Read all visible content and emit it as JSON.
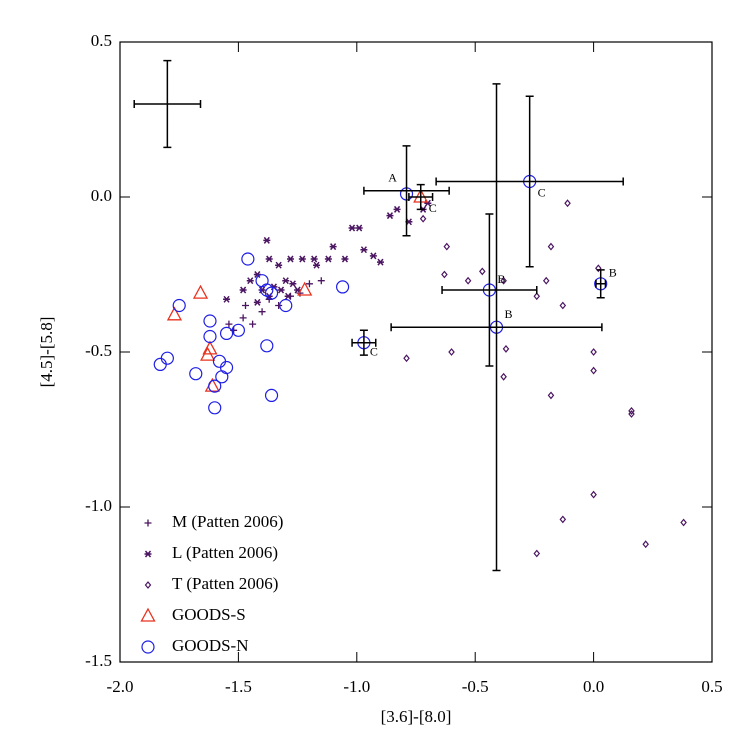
{
  "chart_data": {
    "type": "scatter",
    "xlabel": "[3.6]-[8.0]",
    "ylabel": "[4.5]-[5.8]",
    "xlim": [
      -2.0,
      0.5
    ],
    "ylim": [
      -1.5,
      0.5
    ],
    "xticks": [
      {
        "value": -2.0,
        "label": "-2.0"
      },
      {
        "value": -1.5,
        "label": "-1.5"
      },
      {
        "value": -1.0,
        "label": "-1.0"
      },
      {
        "value": -0.5,
        "label": "-0.5"
      },
      {
        "value": 0.0,
        "label": "0.0"
      },
      {
        "value": 0.5,
        "label": "0.5"
      }
    ],
    "yticks": [
      {
        "value": -1.5,
        "label": "-1.5"
      },
      {
        "value": -1.0,
        "label": "-1.0"
      },
      {
        "value": -0.5,
        "label": "-0.5"
      },
      {
        "value": 0.0,
        "label": "0.0"
      },
      {
        "value": 0.5,
        "label": "0.5"
      }
    ],
    "legend": "lower left",
    "series": [
      {
        "name": "M (Patten 2006)",
        "color": "#4b1561",
        "marker": "plus",
        "x": [
          -1.15,
          -1.24,
          -1.28,
          -1.33,
          -1.4,
          -1.44,
          -1.48,
          -1.52,
          -1.54,
          -1.47,
          -1.37,
          -1.2
        ],
        "values": [
          -0.27,
          -0.31,
          -0.32,
          -0.35,
          -0.37,
          -0.41,
          -0.39,
          -0.43,
          -0.41,
          -0.35,
          -0.33,
          -0.28
        ]
      },
      {
        "name": "L (Patten 2006)",
        "color": "#4b1561",
        "marker": "asterisk",
        "x": [
          -1.55,
          -1.48,
          -1.45,
          -1.42,
          -1.4,
          -1.38,
          -1.37,
          -1.35,
          -1.33,
          -1.32,
          -1.3,
          -1.29,
          -1.28,
          -1.27,
          -1.25,
          -1.23,
          -1.18,
          -1.17,
          -1.12,
          -1.1,
          -1.05,
          -1.02,
          -0.99,
          -0.97,
          -0.93,
          -0.9,
          -0.86,
          -0.83,
          -0.78,
          -0.72,
          -0.7,
          -1.42,
          -1.37
        ],
        "values": [
          -0.33,
          -0.3,
          -0.27,
          -0.25,
          -0.3,
          -0.14,
          -0.2,
          -0.29,
          -0.22,
          -0.3,
          -0.27,
          -0.32,
          -0.2,
          -0.28,
          -0.3,
          -0.2,
          -0.2,
          -0.22,
          -0.2,
          -0.16,
          -0.2,
          -0.1,
          -0.1,
          -0.17,
          -0.19,
          -0.21,
          -0.06,
          -0.04,
          -0.08,
          -0.04,
          -0.02,
          -0.34,
          -0.32
        ]
      },
      {
        "name": "T (Patten 2006)",
        "color": "#4b1561",
        "marker": "diamond",
        "x": [
          -0.62,
          -0.63,
          -0.6,
          -0.53,
          -0.47,
          -0.38,
          -0.37,
          -0.38,
          -0.79,
          -0.18,
          -0.24,
          -0.2,
          -0.18,
          -0.11,
          -0.13,
          0.0,
          0.0,
          0.02,
          0.16,
          0.16,
          0.0,
          -0.13,
          -0.24,
          0.22,
          0.38,
          -0.72
        ],
        "values": [
          -0.16,
          -0.25,
          -0.5,
          -0.27,
          -0.24,
          -0.27,
          -0.49,
          -0.58,
          -0.52,
          -0.64,
          -0.32,
          -0.27,
          -0.16,
          -0.02,
          -0.35,
          -0.5,
          -0.56,
          -0.23,
          -0.69,
          -0.7,
          -0.96,
          -1.04,
          -1.15,
          -1.12,
          -1.05,
          -0.07
        ]
      },
      {
        "name": "GOODS-S",
        "color": "#e8321e",
        "marker": "triangle",
        "x": [
          -1.77,
          -1.66,
          -1.63,
          -1.62,
          -1.61,
          -1.22,
          -0.73
        ],
        "values": [
          -0.38,
          -0.31,
          -0.51,
          -0.49,
          -0.61,
          -0.3,
          0.0
        ]
      },
      {
        "name": "GOODS-N",
        "color": "#1e1ee6",
        "marker": "circle",
        "x": [
          -1.83,
          -1.8,
          -1.75,
          -1.68,
          -1.62,
          -1.62,
          -1.58,
          -1.57,
          -1.6,
          -1.55,
          -1.55,
          -1.5,
          -1.46,
          -1.4,
          -1.38,
          -1.36,
          -1.3,
          -1.38,
          -1.36,
          -1.06,
          -0.97,
          -0.79,
          -0.27,
          -0.44,
          -0.41,
          0.03,
          -1.6
        ],
        "values": [
          -0.54,
          -0.52,
          -0.35,
          -0.57,
          -0.4,
          -0.45,
          -0.53,
          -0.58,
          -0.68,
          -0.44,
          -0.55,
          -0.43,
          -0.2,
          -0.27,
          -0.3,
          -0.31,
          -0.35,
          -0.48,
          -0.64,
          -0.29,
          -0.47,
          0.01,
          0.05,
          -0.3,
          -0.42,
          -0.28,
          -0.61
        ]
      }
    ],
    "errorbars": {
      "x": [
        -1.8,
        -0.79,
        -0.73,
        -0.27,
        -0.44,
        -0.41,
        0.03,
        -0.97
      ],
      "y": [
        0.3,
        0.02,
        0.0,
        0.05,
        -0.3,
        -0.42,
        -0.28,
        -0.47
      ],
      "xerr": [
        0.14,
        0.18,
        0.05,
        0.395,
        0.2,
        0.445,
        0.02,
        0.05
      ],
      "yerr": [
        0.14,
        0.145,
        0.04,
        0.275,
        0.245,
        0.785,
        0.045,
        0.04
      ],
      "labels": [
        null,
        "A",
        "C",
        "C",
        "B",
        "B",
        "B",
        "C"
      ]
    }
  }
}
